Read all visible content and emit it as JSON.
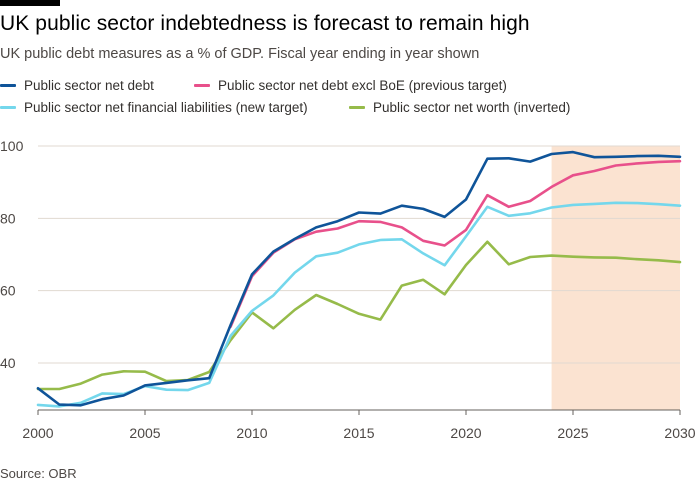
{
  "header": {
    "title": "UK public sector indebtedness is forecast to remain high",
    "subtitle": "UK public debt measures as a % of GDP. Fiscal year ending in year shown"
  },
  "legend": [
    {
      "label": "Public sector net debt",
      "color": "#0f5499"
    },
    {
      "label": "Public sector net debt excl BoE (previous target)",
      "color": "#e8508b"
    },
    {
      "label": "Public sector net financial liabilities (new target)",
      "color": "#74d7ec"
    },
    {
      "label": "Public sector net worth (inverted)",
      "color": "#96bb4a"
    }
  ],
  "footer": {
    "source": "Source: OBR"
  },
  "chart_data": {
    "type": "line",
    "title": "UK public sector indebtedness is forecast to remain high",
    "subtitle": "UK public debt measures as a % of GDP. Fiscal year ending in year shown",
    "xlabel": "",
    "ylabel": "",
    "xlim": [
      2000,
      2030
    ],
    "ylim": [
      27,
      100
    ],
    "yticks": [
      40,
      60,
      80,
      100
    ],
    "xticks": [
      2000,
      2005,
      2010,
      2015,
      2020,
      2025,
      2030
    ],
    "grid": "horizontal",
    "forecast_shading": {
      "from": 2024,
      "to": 2030,
      "color": "#fbe3d1"
    },
    "series": [
      {
        "name": "Public sector net debt",
        "color": "#0f5499",
        "x": [
          2000,
          2001,
          2002,
          2003,
          2004,
          2005,
          2006,
          2007,
          2008,
          2009,
          2010,
          2011,
          2012,
          2013,
          2014,
          2015,
          2016,
          2017,
          2018,
          2019,
          2020,
          2021,
          2022,
          2023,
          2024,
          2025,
          2026,
          2027,
          2028,
          2029,
          2030
        ],
        "values": [
          33,
          28.5,
          28.3,
          30,
          31,
          33.8,
          34.5,
          35.2,
          35.8,
          50.5,
          64.5,
          70.8,
          74.3,
          77.5,
          79.2,
          81.6,
          81.3,
          83.5,
          82.6,
          80.4,
          85.2,
          96.5,
          96.6,
          95.7,
          97.8,
          98.3,
          96.9,
          97,
          97.2,
          97.3,
          97
        ]
      },
      {
        "name": "Public sector net debt excl BoE (previous target)",
        "color": "#e8508b",
        "x": [
          2009,
          2010,
          2011,
          2012,
          2013,
          2014,
          2015,
          2016,
          2017,
          2018,
          2019,
          2020,
          2021,
          2022,
          2023,
          2024,
          2025,
          2026,
          2027,
          2028,
          2029,
          2030
        ],
        "values": [
          50,
          64,
          70.5,
          74.2,
          76.3,
          77.2,
          79.2,
          79,
          77.5,
          73.8,
          72.5,
          76.8,
          86.4,
          83.2,
          84.8,
          88.7,
          91.9,
          93.1,
          94.6,
          95.2,
          95.6,
          95.8
        ]
      },
      {
        "name": "Public sector net financial liabilities (new target)",
        "color": "#74d7ec",
        "x": [
          2000,
          2001,
          2002,
          2003,
          2004,
          2005,
          2006,
          2007,
          2008,
          2009,
          2010,
          2011,
          2012,
          2013,
          2014,
          2015,
          2016,
          2017,
          2018,
          2019,
          2020,
          2021,
          2022,
          2023,
          2024,
          2025,
          2026,
          2027,
          2028,
          2029,
          2030
        ],
        "values": [
          28.4,
          28,
          29,
          31.6,
          31.4,
          33.6,
          32.6,
          32.5,
          34.5,
          47.5,
          54.4,
          58.7,
          65,
          69.5,
          70.5,
          72.8,
          74,
          74.2,
          70.3,
          67,
          75,
          83.2,
          80.7,
          81.4,
          83,
          83.7,
          84,
          84.3,
          84.2,
          83.9,
          83.5
        ]
      },
      {
        "name": "Public sector net worth (inverted)",
        "color": "#96bb4a",
        "x": [
          2000,
          2001,
          2002,
          2003,
          2004,
          2005,
          2006,
          2007,
          2008,
          2009,
          2010,
          2011,
          2012,
          2013,
          2014,
          2015,
          2016,
          2017,
          2018,
          2019,
          2020,
          2021,
          2022,
          2023,
          2024,
          2025,
          2026,
          2027,
          2028,
          2029,
          2030
        ],
        "values": [
          32.8,
          32.8,
          34.3,
          36.8,
          37.7,
          37.6,
          35,
          35.3,
          37.5,
          46.3,
          54,
          49.6,
          54.7,
          58.8,
          56.3,
          53.6,
          52,
          61.4,
          63,
          59,
          67.1,
          73.5,
          67.3,
          69.3,
          69.7,
          69.4,
          69.2,
          69.1,
          68.7,
          68.4,
          67.9
        ]
      }
    ]
  }
}
